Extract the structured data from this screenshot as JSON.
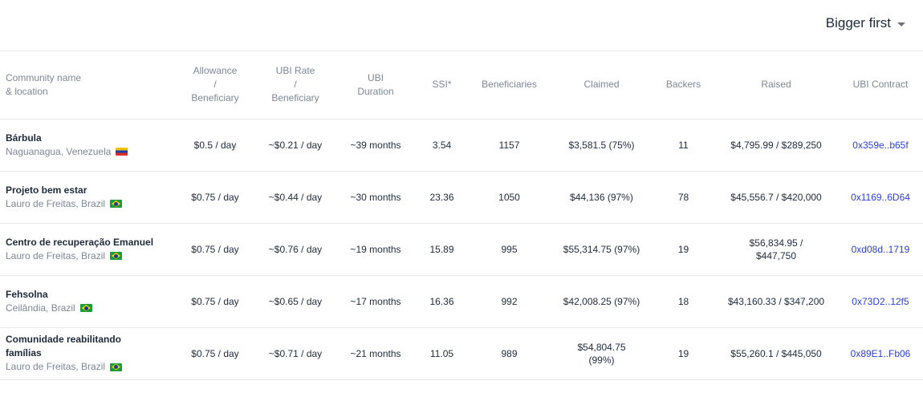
{
  "sort": {
    "label": "Bigger first"
  },
  "columns": {
    "name_line1": "Community name",
    "name_line2": "& location",
    "allowance_1": "Allowance",
    "allowance_2": "/",
    "allowance_3": "Beneficiary",
    "ubirate_1": "UBI Rate",
    "ubirate_2": "/",
    "ubirate_3": "Beneficiary",
    "duration_1": "UBI",
    "duration_2": "Duration",
    "ssi": "SSI*",
    "beneficiaries": "Beneficiaries",
    "claimed": "Claimed",
    "backers": "Backers",
    "raised": "Raised",
    "contract": "UBI Contract"
  },
  "rows": [
    {
      "name_1": "Bárbula",
      "name_2": "",
      "location": "Naguanagua, Venezuela",
      "flag": "venezuela-flag",
      "allowance": "$0.5 / day",
      "ubirate": "~$0.21 / day",
      "duration": "~39 months",
      "ssi": "3.54",
      "beneficiaries": "1157",
      "claimed_1": "$3,581.5 (75%)",
      "claimed_2": "",
      "backers": "11",
      "raised_1": "$4,795.99 / $289,250",
      "raised_2": "",
      "contract": "0x359e..b65f"
    },
    {
      "name_1": "Projeto bem estar",
      "name_2": "",
      "location": "Lauro de Freitas, Brazil",
      "flag": "brazil-flag",
      "allowance": "$0.75 / day",
      "ubirate": "~$0.44 / day",
      "duration": "~30 months",
      "ssi": "23.36",
      "beneficiaries": "1050",
      "claimed_1": "$44,136 (97%)",
      "claimed_2": "",
      "backers": "78",
      "raised_1": "$45,556.7 / $420,000",
      "raised_2": "",
      "contract": "0x1169..6D64"
    },
    {
      "name_1": "Centro de recuperação Emanuel",
      "name_2": "",
      "location": "Lauro de Freitas, Brazil",
      "flag": "brazil-flag",
      "allowance": "$0.75 / day",
      "ubirate": "~$0.76 / day",
      "duration": "~19 months",
      "ssi": "15.89",
      "beneficiaries": "995",
      "claimed_1": "$55,314.75 (97%)",
      "claimed_2": "",
      "backers": "19",
      "raised_1": "$56,834.95 /",
      "raised_2": "$447,750",
      "contract": "0xd08d..1719"
    },
    {
      "name_1": "Fehsolna",
      "name_2": "",
      "location": "Ceilândia, Brazil",
      "flag": "brazil-flag",
      "allowance": "$0.75 / day",
      "ubirate": "~$0.65 / day",
      "duration": "~17 months",
      "ssi": "16.36",
      "beneficiaries": "992",
      "claimed_1": "$42,008.25 (97%)",
      "claimed_2": "",
      "backers": "18",
      "raised_1": "$43,160.33 / $347,200",
      "raised_2": "",
      "contract": "0x73D2..12f5"
    },
    {
      "name_1": "Comunidade reabilitando",
      "name_2": "famílias",
      "location": "Lauro de Freitas, Brazil",
      "flag": "brazil-flag",
      "allowance": "$0.75 / day",
      "ubirate": "~$0.71 / day",
      "duration": "~21 months",
      "ssi": "11.05",
      "beneficiaries": "989",
      "claimed_1": "$54,804.75",
      "claimed_2": "(99%)",
      "backers": "19",
      "raised_1": "$55,260.1 / $445,050",
      "raised_2": "",
      "contract": "0x89E1..Fb06"
    }
  ]
}
